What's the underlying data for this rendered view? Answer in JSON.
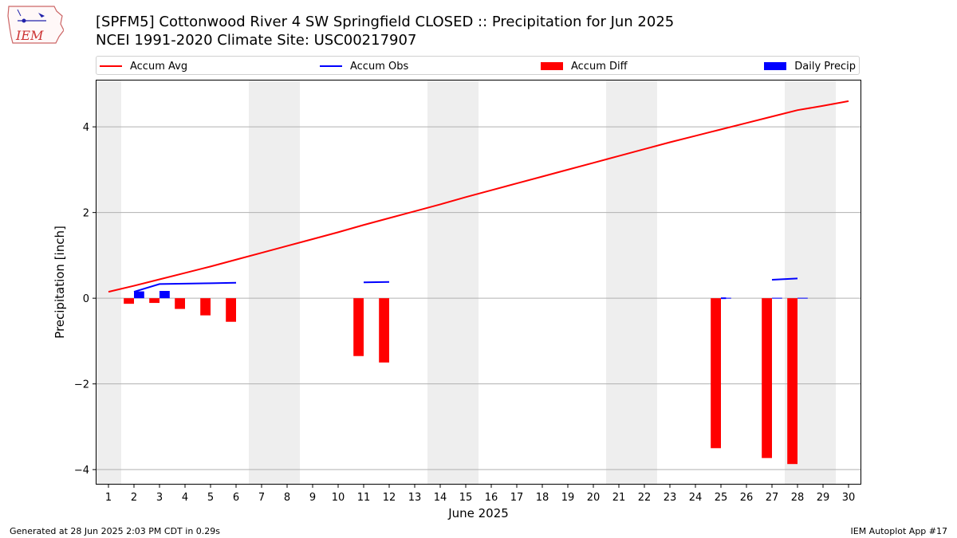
{
  "title_line1": "[SPFM5] Cottonwood River 4 SW Springfield CLOSED :: Precipitation for Jun 2025",
  "title_line2": "NCEI 1991-2020 Climate Site: USC00217907",
  "logo_text": "IEM",
  "footer_left": "Generated at 28 Jun 2025 2:03 PM CDT in 0.29s",
  "footer_right": "IEM Autoplot App #17",
  "colors": {
    "avg": "#ff0000",
    "obs": "#0000ff",
    "diff": "#ff0000",
    "daily": "#0000ff",
    "weekend": "#eeeeee",
    "grid": "#b0b0b0"
  },
  "chart_data": {
    "type": "bar",
    "xlabel": "June 2025",
    "ylabel": "Precipitation [inch]",
    "x": [
      1,
      2,
      3,
      4,
      5,
      6,
      7,
      8,
      9,
      10,
      11,
      12,
      13,
      14,
      15,
      16,
      17,
      18,
      19,
      20,
      21,
      22,
      23,
      24,
      25,
      26,
      27,
      28,
      29,
      30
    ],
    "xlim": [
      0.5,
      30.5
    ],
    "ylim": [
      -4.35,
      5.1
    ],
    "yticks": [
      -4,
      -2,
      0,
      2,
      4
    ],
    "ytick_labels": [
      "−4",
      "−2",
      "0",
      "2",
      "4"
    ],
    "grid": "y",
    "legend": "top, horizontal",
    "shaded_days": [
      [
        0.5,
        1.5
      ],
      [
        6.5,
        8.5
      ],
      [
        13.5,
        15.5
      ],
      [
        20.5,
        22.5
      ],
      [
        27.5,
        29.5
      ]
    ],
    "series": [
      {
        "name": "Accum Avg",
        "type": "line",
        "x": [
          1,
          2,
          3,
          4,
          5,
          6,
          7,
          8,
          9,
          10,
          11,
          12,
          13,
          14,
          15,
          16,
          17,
          18,
          19,
          20,
          21,
          22,
          23,
          24,
          25,
          26,
          27,
          28,
          29,
          30
        ],
        "values": [
          0.15,
          0.29,
          0.44,
          0.59,
          0.74,
          0.9,
          1.06,
          1.22,
          1.38,
          1.54,
          1.71,
          1.87,
          2.03,
          2.19,
          2.36,
          2.52,
          2.68,
          2.84,
          3.0,
          3.16,
          3.32,
          3.48,
          3.64,
          3.79,
          3.94,
          4.09,
          4.24,
          4.39,
          4.49,
          4.6
        ]
      },
      {
        "name": "Accum Obs",
        "type": "line",
        "segments": [
          {
            "x": [
              2,
              3,
              4,
              5,
              6
            ],
            "values": [
              0.15,
              0.33,
              0.34,
              0.35,
              0.36
            ]
          },
          {
            "x": [
              11,
              12
            ],
            "values": [
              0.37,
              0.38
            ]
          },
          {
            "x": [
              25,
              25.2
            ],
            "values": [
              0.0,
              0.0
            ]
          },
          {
            "x": [
              27,
              28
            ],
            "values": [
              0.43,
              0.46
            ]
          }
        ]
      },
      {
        "name": "Accum Diff",
        "type": "bar",
        "x": [
          2,
          3,
          4,
          5,
          6,
          11,
          12,
          25,
          27,
          28
        ],
        "values": [
          -0.13,
          -0.11,
          -0.25,
          -0.4,
          -0.55,
          -1.35,
          -1.5,
          -3.5,
          -3.73,
          -3.87
        ]
      },
      {
        "name": "Daily Precip",
        "type": "bar",
        "x": [
          2,
          3,
          25,
          27,
          28
        ],
        "values": [
          0.16,
          0.17,
          0.01,
          0.01,
          0.01
        ]
      }
    ]
  }
}
